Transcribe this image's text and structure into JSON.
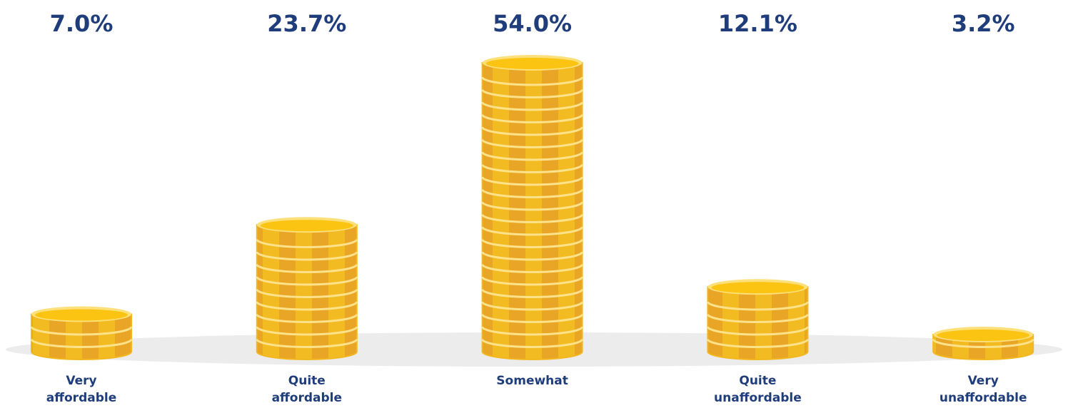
{
  "chart_data": {
    "type": "bar",
    "categories": [
      "Very affordable",
      "Quite affordable",
      "Somewhat",
      "Quite unaffordable",
      "Very unaffordable"
    ],
    "values": [
      7.0,
      23.7,
      54.0,
      12.1,
      3.2
    ],
    "value_labels": [
      "7.0%",
      "23.7%",
      "54.0%",
      "12.1%",
      "3.2%"
    ],
    "color": "#f2b71e"
  }
}
